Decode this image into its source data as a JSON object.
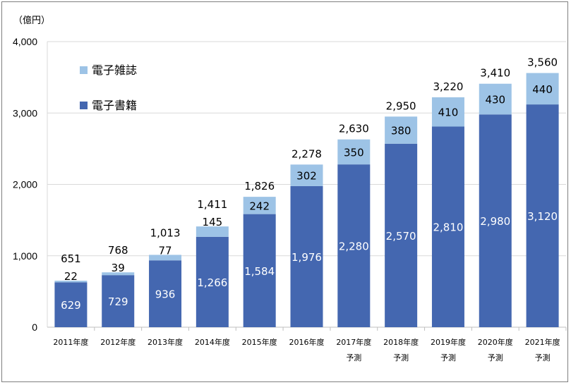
{
  "chart_data": {
    "type": "bar",
    "stacked": true,
    "unit_label": "（億円）",
    "categories": [
      [
        "2011年度",
        ""
      ],
      [
        "2012年度",
        ""
      ],
      [
        "2013年度",
        ""
      ],
      [
        "2014年度",
        ""
      ],
      [
        "2015年度",
        ""
      ],
      [
        "2016年度",
        ""
      ],
      [
        "2017年度",
        "予測"
      ],
      [
        "2018年度",
        "予測"
      ],
      [
        "2019年度",
        "予測"
      ],
      [
        "2020年度",
        "予測"
      ],
      [
        "2021年度",
        "予測"
      ]
    ],
    "series": [
      {
        "name": "電子書籍",
        "color": "#4467b0",
        "values": [
          629,
          729,
          936,
          1266,
          1584,
          1976,
          2280,
          2570,
          2810,
          2980,
          3120
        ],
        "labels": [
          "629",
          "729",
          "936",
          "1,266",
          "1,584",
          "1,976",
          "2,280",
          "2,570",
          "2,810",
          "2,980",
          "3,120"
        ]
      },
      {
        "name": "電子雑誌",
        "color": "#9dc3e6",
        "values": [
          22,
          39,
          77,
          145,
          242,
          302,
          350,
          380,
          410,
          430,
          440
        ],
        "labels": [
          "22",
          "39",
          "77",
          "145",
          "242",
          "302",
          "350",
          "380",
          "410",
          "430",
          "440"
        ]
      }
    ],
    "totals": [
      651,
      768,
      1013,
      1411,
      1826,
      2278,
      2630,
      2950,
      3220,
      3410,
      3560
    ],
    "total_labels": [
      "651",
      "768",
      "1,013",
      "1,411",
      "1,826",
      "2,278",
      "2,630",
      "2,950",
      "3,220",
      "3,410",
      "3,560"
    ],
    "ylim": [
      0,
      4000
    ],
    "yticks": [
      0,
      1000,
      2000,
      3000,
      4000
    ],
    "ytick_labels": [
      "0",
      "1,000",
      "2,000",
      "3,000",
      "4,000"
    ],
    "grid": true,
    "legend_position": "top-left"
  }
}
